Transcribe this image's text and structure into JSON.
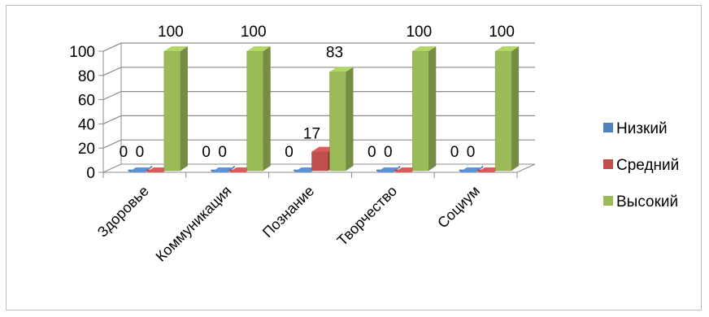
{
  "chart_data": {
    "type": "bar",
    "title": "",
    "xlabel": "",
    "ylabel": "",
    "ylim": [
      0,
      100
    ],
    "y_ticks": [
      "0",
      "20",
      "40",
      "60",
      "80",
      "100"
    ],
    "grid": true,
    "legend_position": "right",
    "categories": [
      "Здоровье",
      "Коммуникация",
      "Познание",
      "Творчество",
      "Социум"
    ],
    "series": [
      {
        "name": "Низкий",
        "color": "#4f81bd",
        "values": [
          0,
          0,
          0,
          0,
          0
        ]
      },
      {
        "name": "Средний",
        "color": "#c0504d",
        "values": [
          0,
          0,
          17,
          0,
          0
        ]
      },
      {
        "name": "Высокий",
        "color": "#9bbb59",
        "values": [
          100,
          100,
          83,
          100,
          100
        ]
      }
    ]
  }
}
